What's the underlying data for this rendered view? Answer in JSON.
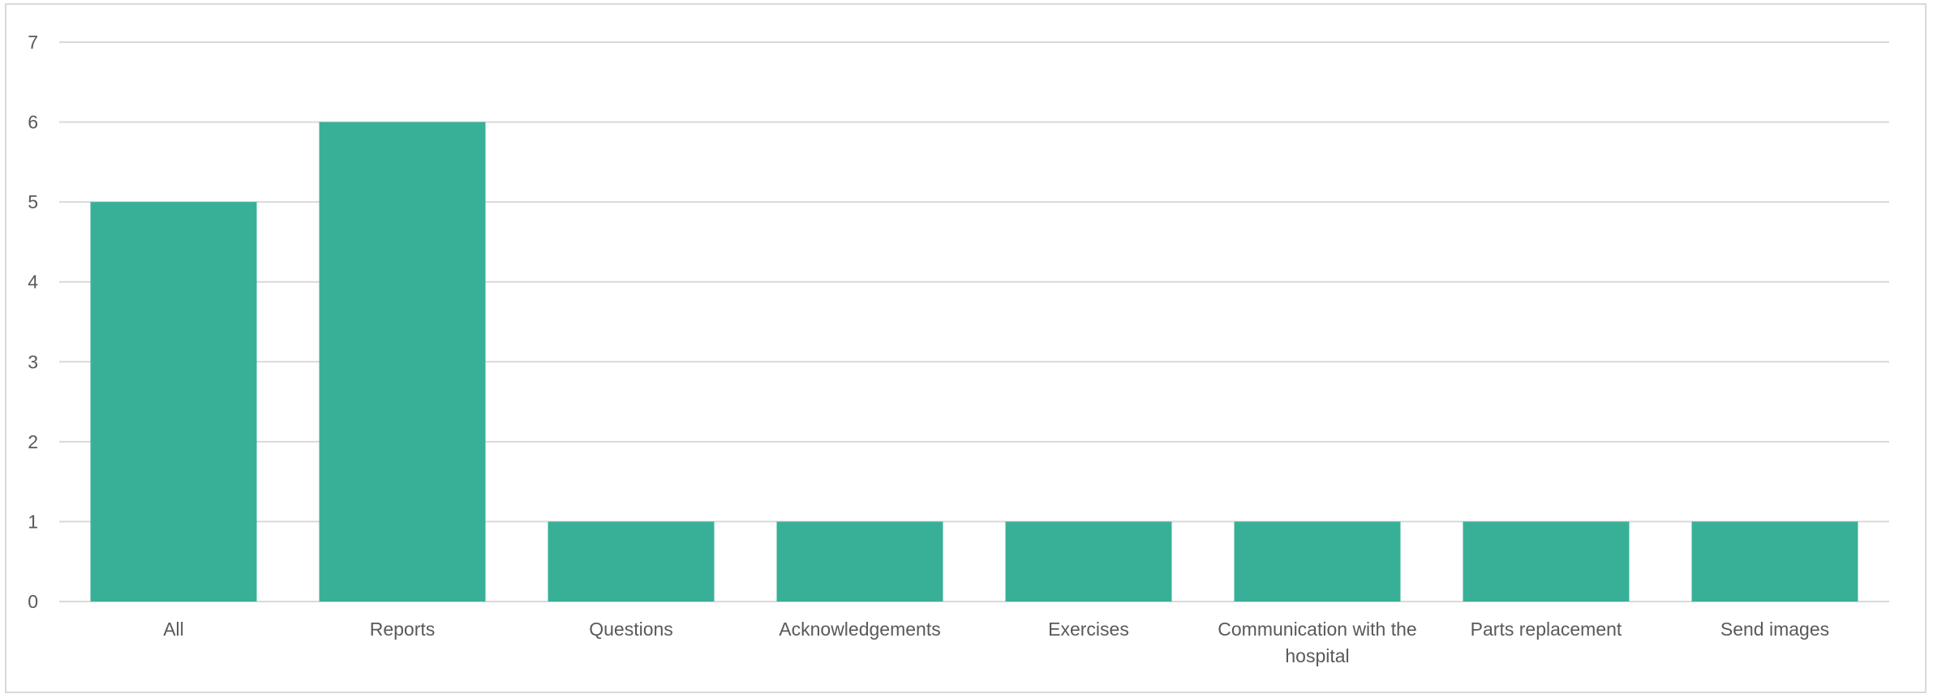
{
  "chart_data": {
    "type": "bar",
    "title": "",
    "xlabel": "",
    "ylabel": "",
    "categories": [
      "All",
      "Reports",
      "Questions",
      "Acknowledgements",
      "Exercises",
      "Communication with the hospital",
      "Parts replacement",
      "Send images"
    ],
    "category_label_lines": [
      [
        "All"
      ],
      [
        "Reports"
      ],
      [
        "Questions"
      ],
      [
        "Acknowledgements"
      ],
      [
        "Exercises"
      ],
      [
        "Communication with the",
        "hospital"
      ],
      [
        "Parts replacement"
      ],
      [
        "Send images"
      ]
    ],
    "values": [
      5,
      6,
      1,
      1,
      1,
      1,
      1,
      1
    ],
    "ylim": [
      0,
      7
    ],
    "yticks": [
      "0",
      "1",
      "2",
      "3",
      "4",
      "5",
      "6",
      "7"
    ],
    "grid": true,
    "legend": "none",
    "bar_color": "#38B097"
  }
}
